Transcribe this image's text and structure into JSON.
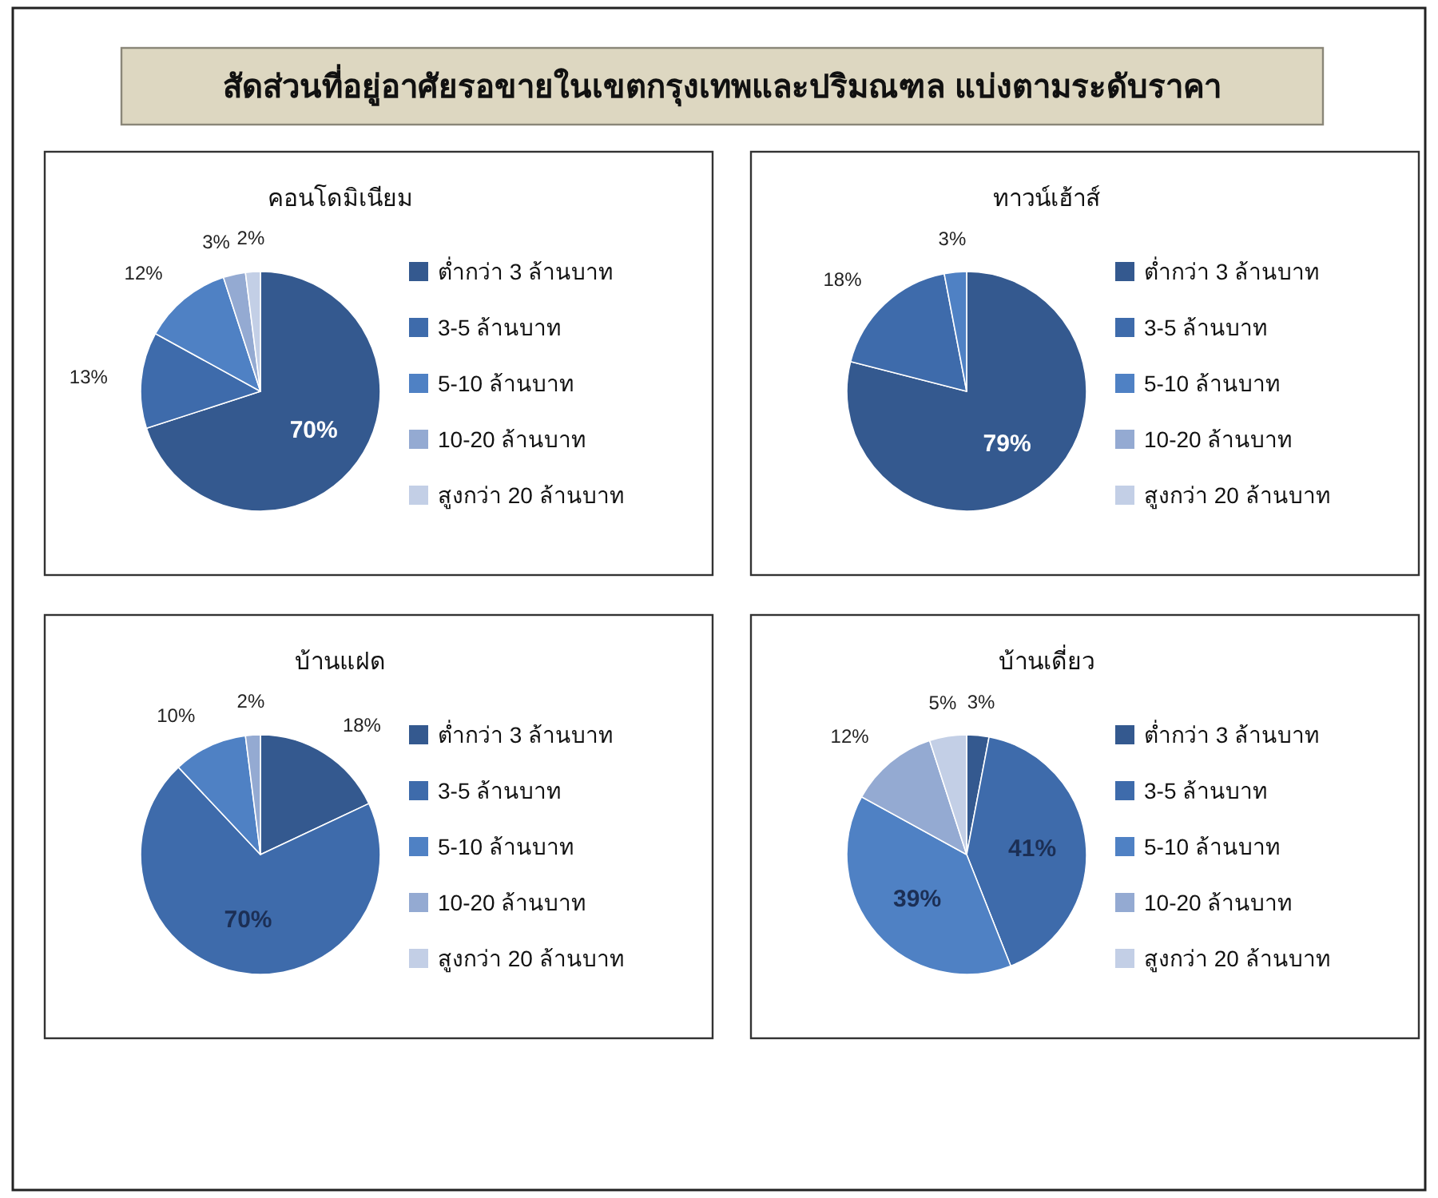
{
  "chart_data": [
    {
      "type": "other",
      "title": "สัดส่วนที่อยู่อาศัยรอขายในเขตกรุงเทพและปริมณฑล แบ่งตามระดับราคา"
    },
    {
      "type": "pie",
      "title": "คอนโดมิเนียม",
      "categories": [
        "ต่ำกว่า 3 ล้านบาท",
        "3-5 ล้านบาท",
        "5-10 ล้านบาท",
        "10-20 ล้านบาท",
        "สูงกว่า 20 ล้านบาท"
      ],
      "values": [
        70,
        13,
        12,
        3,
        2
      ],
      "colors": [
        "#34598f",
        "#3e6bab",
        "#4f81c4",
        "#94aad2",
        "#c3cfe6"
      ],
      "value_labels": [
        "70%",
        "13%",
        "12%",
        "3%",
        "2%"
      ],
      "legend": "right"
    },
    {
      "type": "pie",
      "title": "ทาวน์เฮ้าส์",
      "categories": [
        "ต่ำกว่า 3 ล้านบาท",
        "3-5 ล้านบาท",
        "5-10 ล้านบาท",
        "10-20 ล้านบาท",
        "สูงกว่า 20 ล้านบาท"
      ],
      "values": [
        79,
        18,
        3,
        0,
        0
      ],
      "colors": [
        "#34598f",
        "#3e6bab",
        "#4f81c4",
        "#94aad2",
        "#c3cfe6"
      ],
      "value_labels": [
        "79%",
        "18%",
        "3%",
        null,
        null
      ],
      "legend": "right"
    },
    {
      "type": "pie",
      "title": "บ้านแฝด",
      "categories": [
        "ต่ำกว่า 3 ล้านบาท",
        "3-5 ล้านบาท",
        "5-10 ล้านบาท",
        "10-20 ล้านบาท",
        "สูงกว่า 20 ล้านบาท"
      ],
      "values": [
        18,
        70,
        10,
        2,
        0
      ],
      "colors": [
        "#34598f",
        "#3e6bab",
        "#4f81c4",
        "#94aad2",
        "#c3cfe6"
      ],
      "value_labels": [
        "18%",
        "70%",
        "10%",
        "2%",
        null
      ],
      "legend": "right"
    },
    {
      "type": "pie",
      "title": "บ้านเดี่ยว",
      "categories": [
        "ต่ำกว่า 3 ล้านบาท",
        "3-5 ล้านบาท",
        "5-10 ล้านบาท",
        "10-20 ล้านบาท",
        "สูงกว่า 20 ล้านบาท"
      ],
      "values": [
        3,
        41,
        39,
        12,
        5
      ],
      "colors": [
        "#34598f",
        "#3e6bab",
        "#4f81c4",
        "#94aad2",
        "#c3cfe6"
      ],
      "value_labels": [
        "3%",
        "41%",
        "39%",
        "12%",
        "5%"
      ],
      "legend": "right"
    }
  ]
}
